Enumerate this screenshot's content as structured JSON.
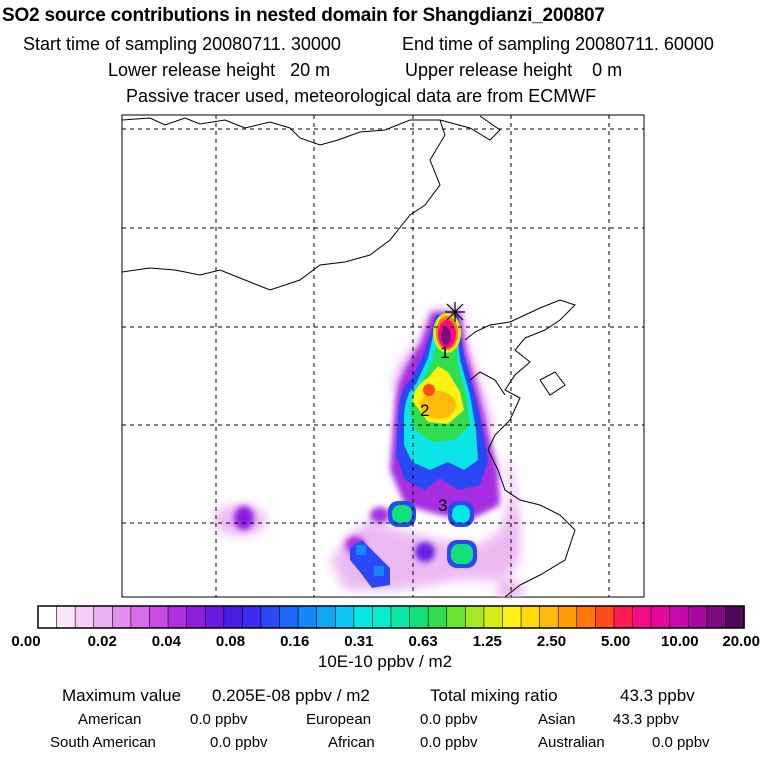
{
  "header": {
    "title": "SO2 source contributions in nested domain for Shangdianzi_200807",
    "start_label": "Start time of sampling 20080711. 30000",
    "end_label": "End time of sampling 20080711. 60000",
    "lower_label": "Lower release height   20 m",
    "upper_label": "Upper release height    0 m",
    "tracer_label": "Passive tracer used, meteorological data are from ECMWF"
  },
  "chart_data": {
    "type": "heatmap",
    "title": "SO2 source contributions in nested domain for Shangdianzi_200807",
    "colorbar": {
      "tick_labels": [
        "0.00",
        "0.02",
        "0.04",
        "0.08",
        "0.16",
        "0.31",
        "0.63",
        "1.25",
        "2.50",
        "5.00",
        "10.00",
        "20.00"
      ],
      "unit": "10E-10 ppbv / m2",
      "colors": [
        "#ffffff",
        "#fbe6fb",
        "#f4ccf6",
        "#ecb0f2",
        "#e38ff0",
        "#d86cec",
        "#c84be6",
        "#b12fe0",
        "#8d1ee0",
        "#6a1ae4",
        "#4a1ce8",
        "#3a2cf0",
        "#2a48f4",
        "#1d66f6",
        "#1488f6",
        "#10a8f4",
        "#0cc8f0",
        "#0ae6e6",
        "#06eecc",
        "#0ae8a6",
        "#12e07a",
        "#30dc50",
        "#6ce232",
        "#a6e822",
        "#d6ee18",
        "#fff212",
        "#ffd80e",
        "#ffbc0c",
        "#ff9c0a",
        "#ff7808",
        "#ff4c1c",
        "#ff1a50",
        "#f80a84",
        "#e6089e",
        "#cc08ac",
        "#a8089e",
        "#7e0a84",
        "#50085a"
      ]
    },
    "labeled_regions": [
      "1",
      "2",
      "3"
    ],
    "receptor_marker": "Shangdianzi"
  },
  "summary": {
    "max_label": "Maximum value",
    "max_value": "0.205E-08 ppbv / m2",
    "total_label": "Total mixing ratio",
    "total_value": "43.3 ppbv",
    "regions": [
      {
        "name": "American",
        "value": "0.0 ppbv"
      },
      {
        "name": "European",
        "value": "0.0 ppbv"
      },
      {
        "name": "Asian",
        "value": "43.3 ppbv"
      },
      {
        "name": "South American",
        "value": "0.0 ppbv"
      },
      {
        "name": "African",
        "value": "0.0 ppbv"
      },
      {
        "name": "Australian",
        "value": "0.0 ppbv"
      }
    ]
  }
}
